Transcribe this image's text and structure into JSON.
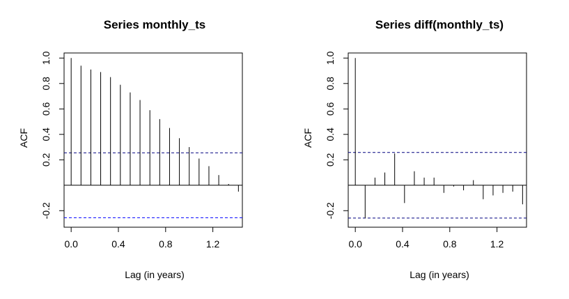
{
  "chart_data": [
    {
      "type": "bar",
      "title": "Series  monthly_ts",
      "xlabel": "Lag (in years)",
      "ylabel": "ACF",
      "xlim": [
        -0.06,
        1.45
      ],
      "ylim": [
        -0.33,
        1.04
      ],
      "x_ticks": [
        0.0,
        0.4,
        0.8,
        1.2
      ],
      "x_tick_labels": [
        "0.0",
        "0.4",
        "0.8",
        "1.2"
      ],
      "y_ticks": [
        -0.2,
        0.2,
        0.4,
        0.6,
        0.8,
        1.0
      ],
      "y_tick_labels": [
        "-0.2",
        "0.2",
        "0.4",
        "0.6",
        "0.8",
        "1.0"
      ],
      "conf_limit": 0.255,
      "conf_limit_color_upper": "#000080",
      "conf_limit_color_lower": "#0000ff",
      "lags": [
        0.0,
        0.0833,
        0.1667,
        0.25,
        0.3333,
        0.4167,
        0.5,
        0.5833,
        0.6667,
        0.75,
        0.8333,
        0.9167,
        1.0,
        1.0833,
        1.1667,
        1.25,
        1.3333,
        1.4167
      ],
      "acf": [
        1.0,
        0.94,
        0.91,
        0.89,
        0.85,
        0.79,
        0.73,
        0.67,
        0.59,
        0.52,
        0.45,
        0.37,
        0.3,
        0.21,
        0.15,
        0.08,
        0.01,
        -0.05
      ]
    },
    {
      "type": "bar",
      "title": "Series  diff(monthly_ts)",
      "xlabel": "Lag (in years)",
      "ylabel": "ACF",
      "xlim": [
        -0.06,
        1.45
      ],
      "ylim": [
        -0.33,
        1.04
      ],
      "x_ticks": [
        0.0,
        0.4,
        0.8,
        1.2
      ],
      "x_tick_labels": [
        "0.0",
        "0.4",
        "0.8",
        "1.2"
      ],
      "y_ticks": [
        -0.2,
        0.2,
        0.4,
        0.6,
        0.8,
        1.0
      ],
      "y_tick_labels": [
        "-0.2",
        "0.2",
        "0.4",
        "0.6",
        "0.8",
        "1.0"
      ],
      "conf_limit": 0.258,
      "conf_limit_color_upper": "#000080",
      "conf_limit_color_lower": "#000080",
      "lags": [
        0.0,
        0.0833,
        0.1667,
        0.25,
        0.3333,
        0.4167,
        0.5,
        0.5833,
        0.6667,
        0.75,
        0.8333,
        0.9167,
        1.0,
        1.0833,
        1.1667,
        1.25,
        1.3333,
        1.4167
      ],
      "acf": [
        1.0,
        -0.26,
        0.06,
        0.1,
        0.25,
        -0.14,
        0.11,
        0.06,
        0.06,
        -0.06,
        -0.01,
        -0.04,
        0.04,
        -0.11,
        -0.08,
        -0.06,
        -0.05,
        -0.15
      ]
    }
  ]
}
